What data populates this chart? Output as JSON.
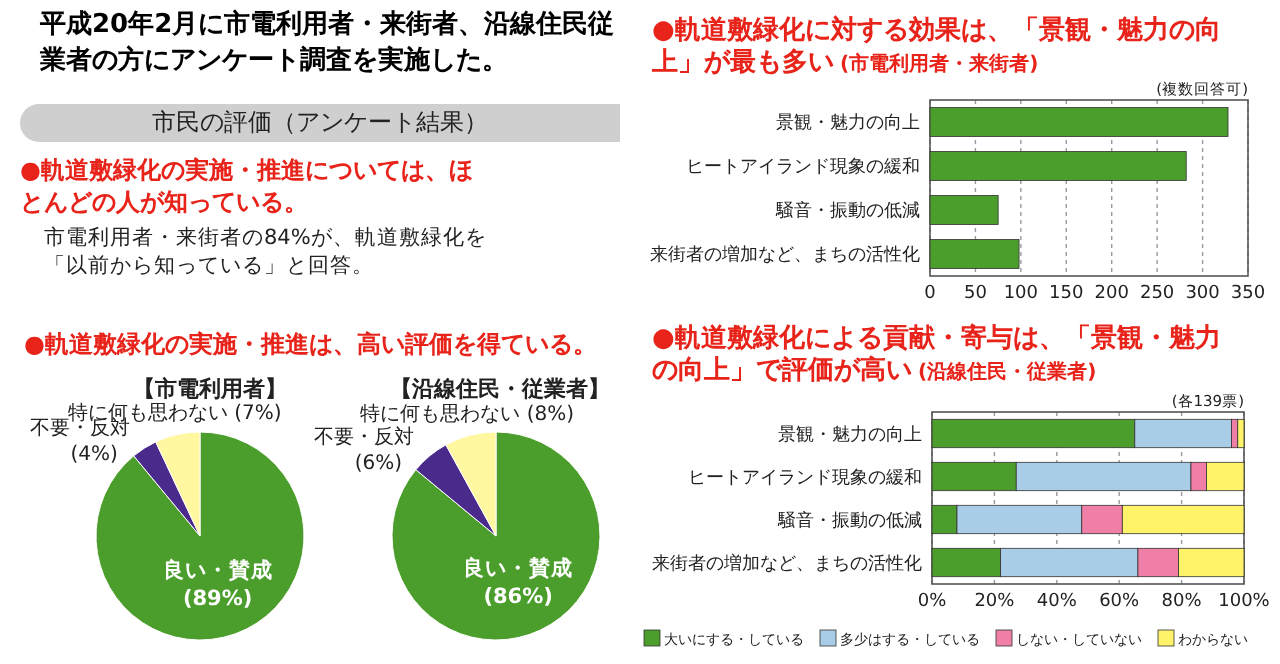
{
  "chart_data": [
    {
      "type": "other",
      "title": "平成20年2月に市電利用者・来街者、沿線住民従業者の方にアンケート調査を実施した。",
      "annotations": [
        "市民の評価（アンケート結果）",
        "●軌道敷緑化の実施・推進については、ほとんどの人が知っている。",
        "市電利用者・来街者の84%が、軌道敷緑化を「以前から知っている」と回答。"
      ]
    },
    {
      "type": "pie",
      "title": "●軌道敷緑化の実施・推進は、高い評価を得ている。",
      "subtitle": "【市電利用者】",
      "categories": [
        "良い・賛成",
        "不要・反対",
        "特に何も思わない"
      ],
      "values": [
        89,
        4,
        7
      ],
      "value_labels": [
        "(89%)",
        "(4%)",
        "(7%)"
      ],
      "colors": [
        "#4b9e2c",
        "#4a2a8a",
        "#fff8a0"
      ]
    },
    {
      "type": "pie",
      "subtitle": "【沿線住民・従業者】",
      "categories": [
        "良い・賛成",
        "不要・反対",
        "特に何も思わない"
      ],
      "values": [
        86,
        6,
        8
      ],
      "value_labels": [
        "(86%)",
        "(6%)",
        "(8%)"
      ],
      "colors": [
        "#4b9e2c",
        "#4a2a8a",
        "#fff8a0"
      ]
    },
    {
      "type": "bar",
      "orientation": "horizontal",
      "title": "●軌道敷緑化に対する効果は、「景観・魅力の向上」が最も多い",
      "subtitle": "(市電利用者・来街者)",
      "annotations": [
        "(複数回答可)"
      ],
      "categories": [
        "景観・魅力の向上",
        "ヒートアイランド現象の緩和",
        "騒音・振動の低減",
        "来街者の増加など、まちの活性化"
      ],
      "values": [
        328,
        282,
        75,
        98
      ],
      "color": "#4b9e2c",
      "xlim": [
        0,
        350
      ],
      "xticks": [
        0,
        50,
        100,
        150,
        200,
        250,
        300,
        350
      ],
      "grid": "x"
    },
    {
      "type": "bar",
      "orientation": "horizontal",
      "stacked": true,
      "title": "●軌道敷緑化による貢献・寄与は、「景観・魅力の向上」で評価が高い",
      "subtitle": "(沿線住民・従業者)",
      "annotations": [
        "(各139票)"
      ],
      "categories": [
        "景観・魅力の向上",
        "ヒートアイランド現象の緩和",
        "騒音・振動の低減",
        "来街者の増加など、まちの活性化"
      ],
      "xlim": [
        0,
        100
      ],
      "xticks": [
        {
          "value": 0,
          "label": "0%"
        },
        {
          "value": 20,
          "label": "20%"
        },
        {
          "value": 40,
          "label": "40%"
        },
        {
          "value": 60,
          "label": "60%"
        },
        {
          "value": 80,
          "label": "80%"
        },
        {
          "value": 100,
          "label": "100%"
        }
      ],
      "grid": "x",
      "legend": "bottom",
      "series": [
        {
          "name": "大いにする・している",
          "color": "#4b9e2c",
          "values": [
            65,
            27,
            8,
            22
          ]
        },
        {
          "name": "多少はする・している",
          "color": "#a9cde6",
          "values": [
            31,
            56,
            40,
            44
          ]
        },
        {
          "name": "しない・していない",
          "color": "#f07fa8",
          "values": [
            2,
            5,
            13,
            13
          ]
        },
        {
          "name": "わからない",
          "color": "#fff36a",
          "values": [
            2,
            12,
            39,
            21
          ]
        }
      ]
    }
  ]
}
